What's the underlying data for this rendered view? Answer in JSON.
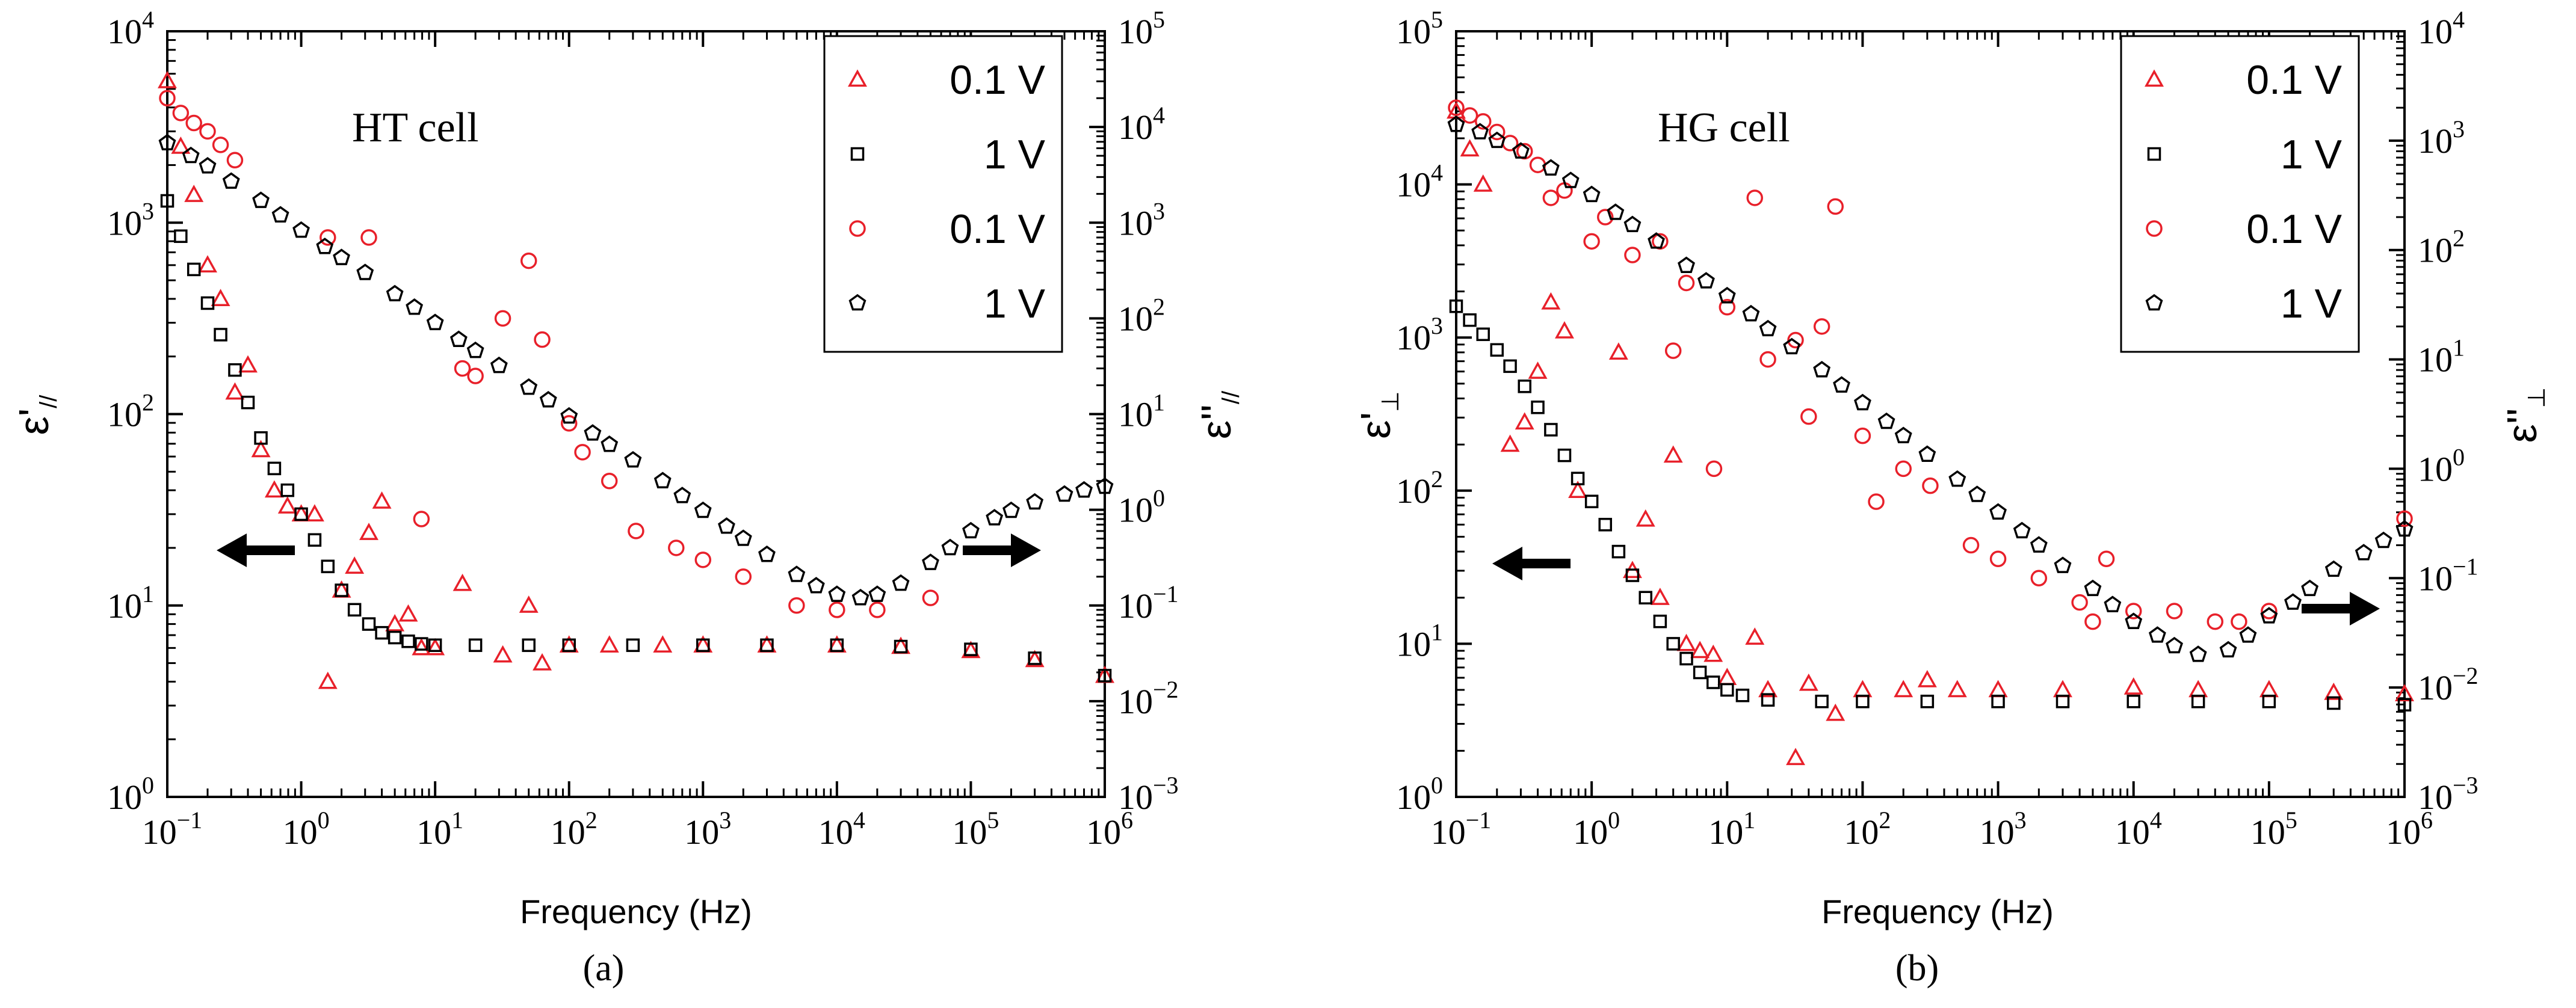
{
  "chart_data": [
    {
      "type": "scatter",
      "panel_label": "(a)",
      "annotation": "HT cell",
      "xlabel": "Frequency (Hz)",
      "ylabel_left": "ε'//",
      "ylabel_right": "ε''//",
      "xscale": "log",
      "xlim": [
        0.1,
        1000000
      ],
      "ylim_left": [
        1,
        10000
      ],
      "ylim_right": [
        0.001,
        100000
      ],
      "x_ticks": [
        {
          "base": "10",
          "exp": "−1",
          "value": 0.1
        },
        {
          "base": "10",
          "exp": "0",
          "value": 1
        },
        {
          "base": "10",
          "exp": "1",
          "value": 10
        },
        {
          "base": "10",
          "exp": "2",
          "value": 100
        },
        {
          "base": "10",
          "exp": "3",
          "value": 1000
        },
        {
          "base": "10",
          "exp": "4",
          "value": 10000
        },
        {
          "base": "10",
          "exp": "5",
          "value": 100000
        },
        {
          "base": "10",
          "exp": "6",
          "value": 1000000
        }
      ],
      "y_left_ticks": [
        {
          "base": "10",
          "exp": "0",
          "value": 1
        },
        {
          "base": "10",
          "exp": "1",
          "value": 10
        },
        {
          "base": "10",
          "exp": "2",
          "value": 100
        },
        {
          "base": "10",
          "exp": "3",
          "value": 1000
        },
        {
          "base": "10",
          "exp": "4",
          "value": 10000
        }
      ],
      "y_right_ticks": [
        {
          "base": "10",
          "exp": "−3",
          "value": 0.001
        },
        {
          "base": "10",
          "exp": "−2",
          "value": 0.01
        },
        {
          "base": "10",
          "exp": "−1",
          "value": 0.1
        },
        {
          "base": "10",
          "exp": "0",
          "value": 1
        },
        {
          "base": "10",
          "exp": "1",
          "value": 10
        },
        {
          "base": "10",
          "exp": "2",
          "value": 100
        },
        {
          "base": "10",
          "exp": "3",
          "value": 1000
        },
        {
          "base": "10",
          "exp": "4",
          "value": 10000
        },
        {
          "base": "10",
          "exp": "5",
          "value": 100000
        }
      ],
      "arrows": [
        "left",
        "right"
      ],
      "legend": {
        "position": "top-right",
        "entries": [
          {
            "label": "0.1 V",
            "marker": "triangle",
            "color": "#e8202a"
          },
          {
            "label": "1 V",
            "marker": "square",
            "color": "#000000"
          },
          {
            "label": "0.1 V",
            "marker": "circle",
            "color": "#e8202a"
          },
          {
            "label": "1 V",
            "marker": "pentagon",
            "color": "#000000"
          }
        ]
      },
      "series": [
        {
          "name": "0.1 V",
          "quantity": "ε'//",
          "axis": "left",
          "marker": "triangle",
          "color": "#e8202a",
          "x": [
            0.1,
            0.126,
            0.158,
            0.2,
            0.25,
            0.32,
            0.4,
            0.5,
            0.63,
            0.79,
            1.0,
            1.26,
            1.58,
            2.0,
            2.5,
            3.2,
            4.0,
            5.0,
            6.3,
            7.9,
            10,
            16,
            32,
            50,
            63,
            100,
            200,
            500,
            1000,
            3000,
            10000,
            30000,
            100000,
            300000,
            1000000
          ],
          "y": [
            5500,
            2500,
            1400,
            600,
            400,
            130,
            180,
            65,
            40,
            33,
            30,
            30,
            4,
            12,
            16,
            24,
            35,
            8,
            9,
            6,
            6,
            13,
            5.5,
            10,
            5,
            6.2,
            6.2,
            6.2,
            6.2,
            6.2,
            6.2,
            6.1,
            5.8,
            5.2,
            4.3
          ]
        },
        {
          "name": "1 V",
          "quantity": "ε'//",
          "axis": "left",
          "marker": "square",
          "color": "#000000",
          "x": [
            0.1,
            0.126,
            0.158,
            0.2,
            0.25,
            0.32,
            0.4,
            0.5,
            0.63,
            0.79,
            1.0,
            1.26,
            1.58,
            2.0,
            2.5,
            3.2,
            4.0,
            5.0,
            6.3,
            7.9,
            10,
            20,
            50,
            100,
            300,
            1000,
            3000,
            10000,
            30000,
            100000,
            300000,
            1000000
          ],
          "y": [
            1300,
            850,
            570,
            380,
            260,
            170,
            115,
            75,
            52,
            40,
            30,
            22,
            16,
            12,
            9.5,
            8,
            7.2,
            6.8,
            6.5,
            6.3,
            6.2,
            6.2,
            6.2,
            6.2,
            6.2,
            6.2,
            6.2,
            6.2,
            6.1,
            5.9,
            5.3,
            4.3
          ]
        },
        {
          "name": "0.1 V",
          "quantity": "ε''//",
          "axis": "right",
          "marker": "circle",
          "color": "#e8202a",
          "x": [
            0.1,
            0.126,
            0.158,
            0.2,
            0.25,
            0.32,
            1.58,
            3.2,
            7.9,
            16,
            20,
            32,
            50,
            63,
            100,
            126,
            200,
            316,
            631,
            1000,
            2000,
            5000,
            10000,
            20000,
            50000
          ],
          "y": [
            20000,
            14000,
            11000,
            9000,
            6500,
            4500,
            700,
            700,
            0.8,
            30,
            25,
            100,
            400,
            60,
            8,
            4,
            2,
            0.6,
            0.4,
            0.3,
            0.2,
            0.1,
            0.09,
            0.09,
            0.12
          ]
        },
        {
          "name": "1 V",
          "quantity": "ε''//",
          "axis": "right",
          "marker": "pentagon",
          "color": "#000000",
          "x": [
            0.1,
            0.15,
            0.2,
            0.3,
            0.5,
            0.7,
            1,
            1.5,
            2,
            3,
            5,
            7,
            10,
            15,
            20,
            30,
            50,
            70,
            100,
            150,
            200,
            300,
            500,
            700,
            1000,
            1500,
            2000,
            3000,
            5000,
            7000,
            10000,
            15000,
            20000,
            30000,
            50000,
            70000,
            100000,
            150000,
            200000,
            300000,
            500000,
            700000,
            1000000
          ],
          "y": [
            6800,
            5000,
            3900,
            2700,
            1700,
            1200,
            830,
            560,
            430,
            300,
            180,
            130,
            90,
            60,
            46,
            32,
            19,
            14,
            9.5,
            6.3,
            4.8,
            3.3,
            2,
            1.4,
            0.98,
            0.67,
            0.5,
            0.34,
            0.21,
            0.16,
            0.13,
            0.12,
            0.13,
            0.17,
            0.28,
            0.4,
            0.6,
            0.82,
            0.98,
            1.2,
            1.45,
            1.6,
            1.75
          ]
        }
      ]
    },
    {
      "type": "scatter",
      "panel_label": "(b)",
      "annotation": "HG cell",
      "xlabel": "Frequency (Hz)",
      "ylabel_left": "ε'⊥",
      "ylabel_right": "ε''⊥",
      "xscale": "log",
      "xlim": [
        0.1,
        1000000
      ],
      "ylim_left": [
        1,
        100000
      ],
      "ylim_right": [
        0.001,
        10000
      ],
      "x_ticks": [
        {
          "base": "10",
          "exp": "−1",
          "value": 0.1
        },
        {
          "base": "10",
          "exp": "0",
          "value": 1
        },
        {
          "base": "10",
          "exp": "1",
          "value": 10
        },
        {
          "base": "10",
          "exp": "2",
          "value": 100
        },
        {
          "base": "10",
          "exp": "3",
          "value": 1000
        },
        {
          "base": "10",
          "exp": "4",
          "value": 10000
        },
        {
          "base": "10",
          "exp": "5",
          "value": 100000
        },
        {
          "base": "10",
          "exp": "6",
          "value": 1000000
        }
      ],
      "y_left_ticks": [
        {
          "base": "10",
          "exp": "0",
          "value": 1
        },
        {
          "base": "10",
          "exp": "1",
          "value": 10
        },
        {
          "base": "10",
          "exp": "2",
          "value": 100
        },
        {
          "base": "10",
          "exp": "3",
          "value": 1000
        },
        {
          "base": "10",
          "exp": "4",
          "value": 10000
        },
        {
          "base": "10",
          "exp": "5",
          "value": 100000
        }
      ],
      "y_right_ticks": [
        {
          "base": "10",
          "exp": "−3",
          "value": 0.001
        },
        {
          "base": "10",
          "exp": "−2",
          "value": 0.01
        },
        {
          "base": "10",
          "exp": "−1",
          "value": 0.1
        },
        {
          "base": "10",
          "exp": "0",
          "value": 1
        },
        {
          "base": "10",
          "exp": "1",
          "value": 10
        },
        {
          "base": "10",
          "exp": "2",
          "value": 100
        },
        {
          "base": "10",
          "exp": "3",
          "value": 1000
        },
        {
          "base": "10",
          "exp": "4",
          "value": 10000
        }
      ],
      "arrows": [
        "left",
        "right"
      ],
      "legend": {
        "position": "top-right",
        "entries": [
          {
            "label": "0.1 V",
            "marker": "triangle",
            "color": "#e8202a"
          },
          {
            "label": "1 V",
            "marker": "square",
            "color": "#000000"
          },
          {
            "label": "0.1 V",
            "marker": "circle",
            "color": "#e8202a"
          },
          {
            "label": "1 V",
            "marker": "pentagon",
            "color": "#000000"
          }
        ]
      },
      "series": [
        {
          "name": "0.1 V",
          "quantity": "ε'⊥",
          "axis": "left",
          "marker": "triangle",
          "color": "#e8202a",
          "x": [
            0.1,
            0.126,
            0.158,
            0.25,
            0.32,
            0.4,
            0.5,
            0.63,
            0.79,
            1.58,
            2.0,
            2.5,
            3.2,
            4.0,
            5.0,
            6.3,
            7.9,
            10,
            16,
            20,
            32,
            40,
            63,
            100,
            200,
            300,
            500,
            1000,
            3000,
            10000,
            30000,
            100000,
            300000,
            1000000
          ],
          "y": [
            30000,
            17000,
            10000,
            200,
            280,
            600,
            1700,
            1100,
            100,
            800,
            30,
            65,
            20,
            170,
            10,
            9,
            8.5,
            6,
            11,
            5,
            1.8,
            5.5,
            3.5,
            5,
            5,
            5.8,
            5,
            5,
            5,
            5.2,
            5,
            5,
            4.8,
            4.7
          ]
        },
        {
          "name": "1 V",
          "quantity": "ε'⊥",
          "axis": "left",
          "marker": "square",
          "color": "#000000",
          "x": [
            0.1,
            0.126,
            0.158,
            0.2,
            0.25,
            0.32,
            0.4,
            0.5,
            0.63,
            0.79,
            1.0,
            1.26,
            1.58,
            2.0,
            2.5,
            3.2,
            4.0,
            5.0,
            6.3,
            7.9,
            10,
            13,
            20,
            50,
            100,
            300,
            1000,
            3000,
            10000,
            30000,
            100000,
            300000,
            1000000
          ],
          "y": [
            1600,
            1300,
            1050,
            830,
            650,
            480,
            350,
            250,
            170,
            120,
            85,
            60,
            40,
            28,
            20,
            14,
            10,
            8,
            6.5,
            5.6,
            5,
            4.6,
            4.3,
            4.2,
            4.2,
            4.2,
            4.2,
            4.2,
            4.2,
            4.2,
            4.2,
            4.1,
            4
          ]
        },
        {
          "name": "0.1 V",
          "quantity": "ε''⊥",
          "axis": "right",
          "marker": "circle",
          "color": "#e8202a",
          "x": [
            0.1,
            0.126,
            0.158,
            0.2,
            0.25,
            0.32,
            0.4,
            0.5,
            0.63,
            1,
            1.26,
            2,
            3.2,
            4,
            5,
            8,
            10,
            16,
            20,
            32,
            40,
            50,
            63,
            100,
            126,
            200,
            316,
            631,
            1000,
            2000,
            4000,
            5000,
            6300,
            10000,
            20000,
            40000,
            60000,
            100000,
            1000000
          ],
          "y": [
            2000,
            1700,
            1500,
            1200,
            950,
            800,
            600,
            300,
            350,
            120,
            200,
            90,
            120,
            12,
            50,
            1,
            30,
            300,
            10,
            15,
            3,
            20,
            250,
            2,
            0.5,
            1,
            0.7,
            0.2,
            0.15,
            0.1,
            0.06,
            0.04,
            0.15,
            0.05,
            0.05,
            0.04,
            0.04,
            0.05,
            0.35
          ]
        },
        {
          "name": "1 V",
          "quantity": "ε''⊥",
          "axis": "right",
          "marker": "pentagon",
          "color": "#000000",
          "x": [
            0.1,
            0.15,
            0.2,
            0.3,
            0.5,
            0.7,
            1,
            1.5,
            2,
            3,
            5,
            7,
            10,
            15,
            20,
            30,
            50,
            70,
            100,
            150,
            200,
            300,
            500,
            700,
            1000,
            1500,
            2000,
            3000,
            5000,
            7000,
            10000,
            15000,
            20000,
            30000,
            50000,
            70000,
            100000,
            150000,
            200000,
            300000,
            500000,
            700000,
            1000000
          ],
          "y": [
            1400,
            1200,
            1000,
            800,
            560,
            430,
            320,
            220,
            170,
            120,
            72,
            52,
            38,
            26,
            19,
            13,
            8,
            5.8,
            4,
            2.7,
            2,
            1.35,
            0.8,
            0.58,
            0.4,
            0.27,
            0.2,
            0.13,
            0.08,
            0.057,
            0.04,
            0.03,
            0.024,
            0.02,
            0.022,
            0.03,
            0.045,
            0.06,
            0.08,
            0.12,
            0.17,
            0.22,
            0.28
          ]
        }
      ]
    }
  ]
}
